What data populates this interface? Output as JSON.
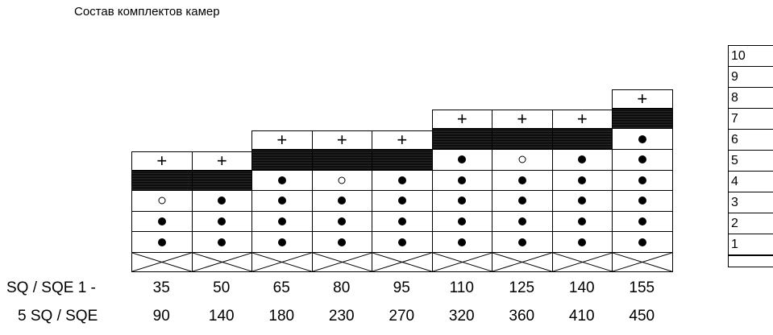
{
  "title": "Состав комплектов камер",
  "row1_label": "SQ / SQE 1 -",
  "row2_label": "5  SQ / SQE",
  "columns": [
    {
      "r1": "35",
      "r2": "90",
      "ring": true
    },
    {
      "r1": "50",
      "r2": "140",
      "ring": false
    },
    {
      "r1": "65",
      "r2": "180",
      "ring": false
    },
    {
      "r1": "80",
      "r2": "230",
      "ring": true
    },
    {
      "r1": "95",
      "r2": "270",
      "ring": false
    },
    {
      "r1": "110",
      "r2": "320",
      "ring": false
    },
    {
      "r1": "125",
      "r2": "360",
      "ring": true
    },
    {
      "r1": "140",
      "r2": "410",
      "ring": false
    },
    {
      "r1": "155",
      "r2": "450",
      "ring": false
    }
  ],
  "legend_levels": [
    "10",
    "9",
    "8",
    "7",
    "6",
    "5",
    "4",
    "3",
    "2",
    "1"
  ]
}
